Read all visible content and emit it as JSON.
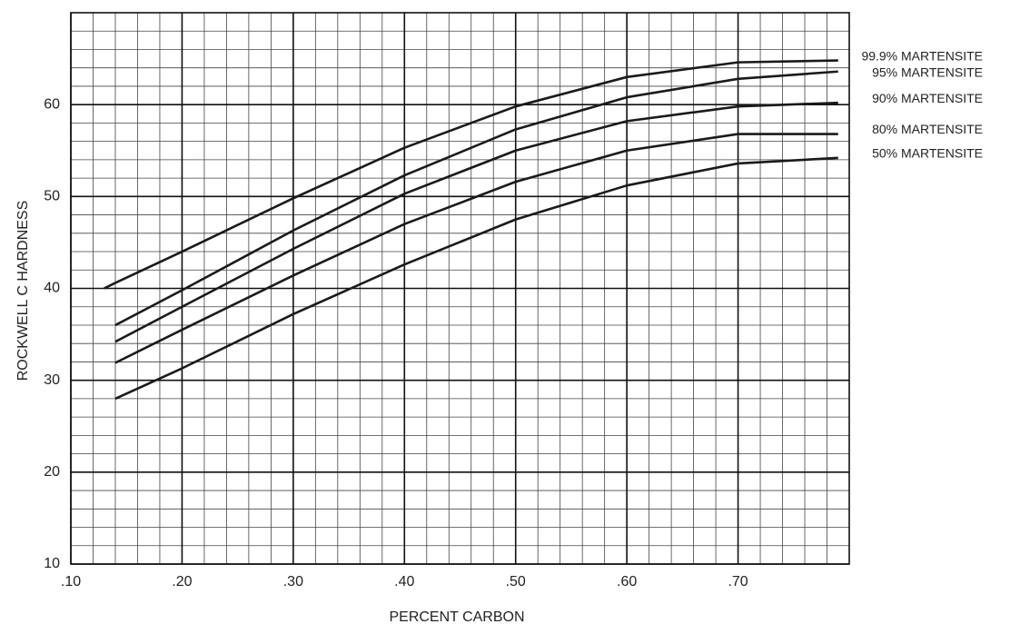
{
  "chart_data": {
    "type": "line",
    "x_label": "PERCENT CARBON",
    "y_label": "ROCKWELL C HARDNESS",
    "x": [
      0.13,
      0.14,
      0.2,
      0.3,
      0.4,
      0.5,
      0.6,
      0.7,
      0.79
    ],
    "series": [
      {
        "name": "99.9% MARTENSITE",
        "color": "#1a1a1a",
        "values": [
          40,
          40.6,
          44,
          49.8,
          55.3,
          59.8,
          63,
          64.6,
          64.8
        ]
      },
      {
        "name": "95% MARTENSITE",
        "color": "#1a1a1a",
        "values": [
          null,
          36,
          39.8,
          46.3,
          52.3,
          57.3,
          60.8,
          62.8,
          63.6
        ]
      },
      {
        "name": "90% MARTENSITE",
        "color": "#1a1a1a",
        "values": [
          null,
          34.2,
          38,
          44.3,
          50.3,
          55,
          58.2,
          59.8,
          60.2
        ]
      },
      {
        "name": "80% MARTENSITE",
        "color": "#1a1a1a",
        "values": [
          null,
          31.9,
          35.5,
          41.4,
          47,
          51.6,
          55,
          56.8,
          56.8
        ]
      },
      {
        "name": "50% MARTENSITE",
        "color": "#1a1a1a",
        "values": [
          null,
          28,
          31.3,
          37.2,
          42.6,
          47.5,
          51.2,
          53.6,
          54.2
        ]
      }
    ],
    "xlim": [
      0.1,
      0.8
    ],
    "ylim": [
      10,
      70
    ],
    "xticks": [
      {
        "value": 0.1,
        "label": ".10"
      },
      {
        "value": 0.2,
        "label": ".20"
      },
      {
        "value": 0.3,
        "label": ".30"
      },
      {
        "value": 0.4,
        "label": ".40"
      },
      {
        "value": 0.5,
        "label": ".50"
      },
      {
        "value": 0.6,
        "label": ".60"
      },
      {
        "value": 0.7,
        "label": ".70"
      }
    ],
    "yticks": [
      10,
      20,
      30,
      40,
      50,
      60
    ],
    "grid": true
  }
}
